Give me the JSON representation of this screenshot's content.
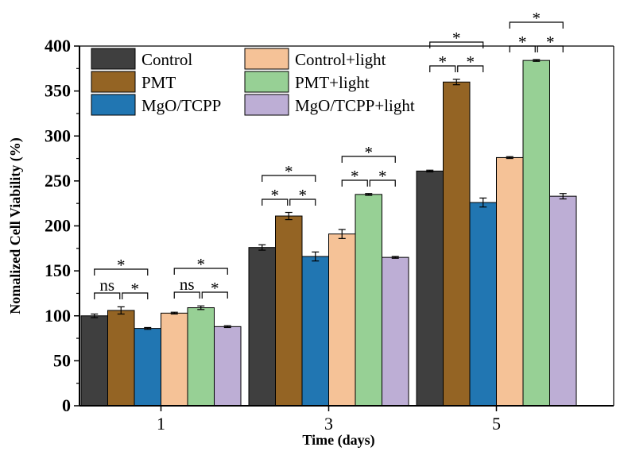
{
  "chart_data": {
    "type": "bar",
    "title": "",
    "xlabel": "Time (days)",
    "ylabel": "Nomalized Cell Viability (%)",
    "ylim": [
      0,
      400
    ],
    "yticks": [
      0,
      50,
      100,
      150,
      200,
      250,
      300,
      350,
      400
    ],
    "categories": [
      "1",
      "3",
      "5"
    ],
    "legend_position": "top-left",
    "grid": false,
    "series": [
      {
        "name": "Control",
        "color": "#3f3f3f",
        "values": [
          100,
          176,
          261
        ],
        "errors": [
          2,
          3,
          1
        ]
      },
      {
        "name": "PMT",
        "color": "#946424",
        "values": [
          106,
          211,
          360
        ],
        "errors": [
          4,
          4,
          3
        ]
      },
      {
        "name": "MgO/TCPP",
        "color": "#2176b2",
        "values": [
          86,
          166,
          226
        ],
        "errors": [
          1,
          5,
          5
        ]
      },
      {
        "name": "Control+light",
        "color": "#f5c297",
        "values": [
          103,
          191,
          276
        ],
        "errors": [
          1,
          5,
          1
        ]
      },
      {
        "name": "PMT+light",
        "color": "#97d095",
        "values": [
          109,
          235,
          384
        ],
        "errors": [
          2,
          1,
          1
        ]
      },
      {
        "name": "MgO/TCPP+light",
        "color": "#bdaed5",
        "values": [
          88,
          165,
          233
        ],
        "errors": [
          1,
          1,
          3
        ]
      }
    ],
    "legend_layout": [
      [
        0,
        3
      ],
      [
        1,
        4
      ],
      [
        2,
        5
      ]
    ],
    "significance": [
      {
        "category": 0,
        "label": "ns",
        "from": 0,
        "to": 1
      },
      {
        "category": 0,
        "label": "*",
        "from": 1,
        "to": 2
      },
      {
        "category": 0,
        "label": "*",
        "from": 0,
        "to": 2
      },
      {
        "category": 0,
        "label": "ns",
        "from": 3,
        "to": 4
      },
      {
        "category": 0,
        "label": "*",
        "from": 4,
        "to": 5
      },
      {
        "category": 0,
        "label": "*",
        "from": 3,
        "to": 5
      },
      {
        "category": 1,
        "label": "*",
        "from": 0,
        "to": 1
      },
      {
        "category": 1,
        "label": "*",
        "from": 1,
        "to": 2
      },
      {
        "category": 1,
        "label": "*",
        "from": 0,
        "to": 2
      },
      {
        "category": 1,
        "label": "*",
        "from": 3,
        "to": 4
      },
      {
        "category": 1,
        "label": "*",
        "from": 4,
        "to": 5
      },
      {
        "category": 1,
        "label": "*",
        "from": 3,
        "to": 5
      },
      {
        "category": 2,
        "label": "*",
        "from": 0,
        "to": 1
      },
      {
        "category": 2,
        "label": "*",
        "from": 1,
        "to": 2
      },
      {
        "category": 2,
        "label": "*",
        "from": 0,
        "to": 2
      },
      {
        "category": 2,
        "label": "*",
        "from": 3,
        "to": 4
      },
      {
        "category": 2,
        "label": "*",
        "from": 4,
        "to": 5
      },
      {
        "category": 2,
        "label": "*",
        "from": 3,
        "to": 5
      }
    ]
  }
}
